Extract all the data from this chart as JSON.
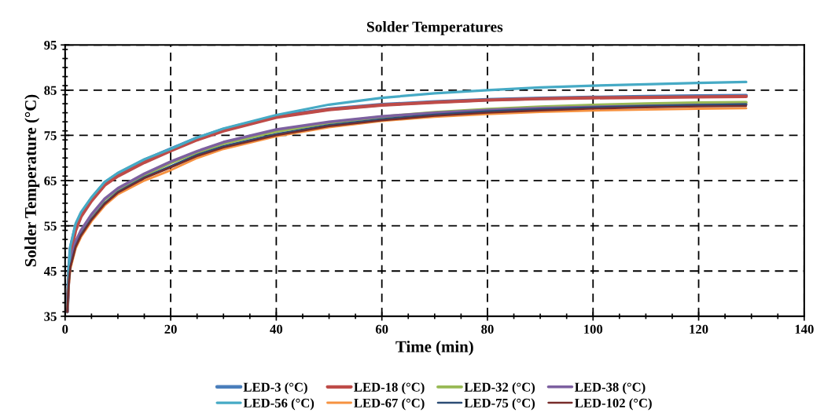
{
  "chart_data": {
    "type": "line",
    "title": "Solder Temperatures",
    "xlabel": "Time (min)",
    "ylabel": "Solder Temperature (°C)",
    "x": [
      0.4,
      0.7,
      1,
      2,
      3,
      5,
      7.5,
      10,
      15,
      20,
      25,
      30,
      40,
      50,
      60,
      70,
      80,
      90,
      100,
      110,
      120,
      129
    ],
    "series": [
      {
        "name": "LED-3 (°C)",
        "color": "#4a7ebb",
        "values": [
          36,
          45,
          50,
          55,
          57.5,
          61,
          64.5,
          66.5,
          69.5,
          72,
          74.4,
          76.3,
          79.2,
          80.8,
          81.8,
          82.4,
          82.9,
          83.2,
          83.4,
          83.6,
          83.7,
          83.8
        ]
      },
      {
        "name": "LED-18 (°C)",
        "color": "#be4b48",
        "values": [
          36,
          44,
          48.5,
          54,
          57,
          60.5,
          64,
          66,
          69,
          71.6,
          74,
          76,
          79,
          80.7,
          81.7,
          82.3,
          82.8,
          83.1,
          83.3,
          83.4,
          83.5,
          83.6
        ]
      },
      {
        "name": "LED-32 (°C)",
        "color": "#98b954",
        "values": [
          null,
          null,
          null,
          null,
          53.8,
          57.3,
          60.8,
          63.1,
          66.2,
          68.9,
          71.2,
          73.2,
          75.9,
          77.8,
          79.1,
          80.1,
          80.8,
          81.3,
          81.7,
          82.0,
          82.2,
          82.3
        ]
      },
      {
        "name": "LED-38 (°C)",
        "color": "#7d60a0",
        "values": [
          36,
          43,
          47,
          51.5,
          54,
          57.5,
          61,
          63.3,
          66.5,
          69.2,
          71.5,
          73.5,
          76.3,
          78,
          79.2,
          80,
          80.6,
          81,
          81.3,
          81.5,
          81.7,
          81.8
        ]
      },
      {
        "name": "LED-56 (°C)",
        "color": "#46aac5",
        "values": [
          36,
          45.5,
          50.5,
          55.5,
          58,
          61.3,
          64.7,
          66.7,
          69.7,
          72,
          74.5,
          76.5,
          79.5,
          81.8,
          83.3,
          84.3,
          85,
          85.6,
          86,
          86.3,
          86.6,
          86.8
        ]
      },
      {
        "name": "LED-67 (°C)",
        "color": "#f69240",
        "values": [
          36,
          42,
          45.5,
          50,
          52.5,
          56,
          59.5,
          62,
          65,
          67.3,
          70,
          72,
          74.8,
          76.8,
          78.2,
          79.1,
          79.7,
          80.2,
          80.5,
          80.7,
          80.9,
          81.0
        ]
      },
      {
        "name": "LED-75 (°C)",
        "color": "#2c4d75",
        "values": [
          36,
          42.5,
          46,
          50.5,
          53,
          56.5,
          60,
          62.5,
          65.7,
          68.2,
          70.7,
          72.6,
          75.3,
          77.3,
          78.6,
          79.6,
          80.3,
          80.8,
          81.2,
          81.5,
          81.7,
          81.9
        ]
      },
      {
        "name": "LED-102 (°C)",
        "color": "#772c2a",
        "values": [
          36,
          42.3,
          45.8,
          50.3,
          52.8,
          56.3,
          59.8,
          62.3,
          65.5,
          67.9,
          70.4,
          72.3,
          75,
          77,
          78.3,
          79.3,
          80,
          80.5,
          80.9,
          81.2,
          81.4,
          81.5
        ]
      }
    ],
    "xlim": [
      0,
      140
    ],
    "xticks": [
      0,
      20,
      40,
      60,
      80,
      100,
      120,
      140
    ],
    "ylim": [
      35,
      95
    ],
    "yticks": [
      35,
      45,
      55,
      65,
      75,
      85,
      95
    ],
    "grid": true,
    "legend": "bottom",
    "marker": "none",
    "line_style": "solid"
  }
}
